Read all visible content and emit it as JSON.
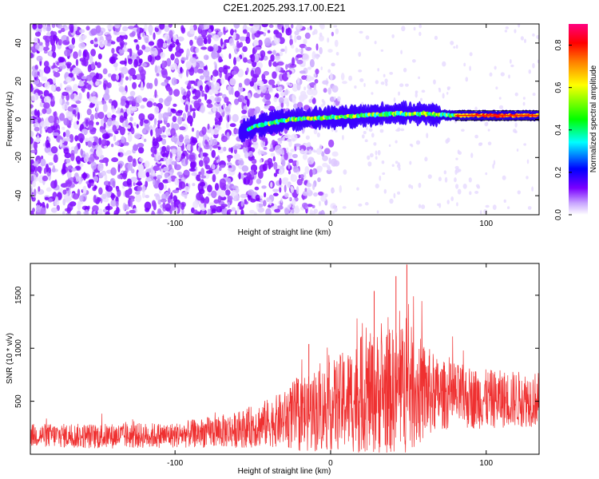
{
  "title": "C2E1.2025.293.17.00.E21",
  "chart_data": [
    {
      "type": "heatmap",
      "xlabel": "Height of straight line (km)",
      "ylabel": "Frequency (Hz)",
      "xlim": [
        -193,
        134
      ],
      "ylim": [
        -50,
        50
      ],
      "xticks": [
        -100,
        0,
        100
      ],
      "yticks": [
        -40,
        -20,
        0,
        20,
        40
      ],
      "xtick_labels": [
        "-100",
        "0",
        "100"
      ],
      "ytick_labels": [
        "-40",
        "-20",
        "0",
        "20",
        "40"
      ],
      "colorbar": {
        "label": "Normalized spectral amplitude",
        "range": [
          0.0,
          0.9
        ],
        "ticks": [
          0.0,
          0.2,
          0.4,
          0.6,
          0.8
        ],
        "tick_labels": [
          "0.0",
          "0.2",
          "0.4",
          "0.6",
          "0.8"
        ],
        "colors": [
          "#ffffff",
          "#7a00ff",
          "#0000ff",
          "#00ffff",
          "#00ff00",
          "#ffff00",
          "#ff8000",
          "#ff0000",
          "#ff0080"
        ]
      },
      "description_values": {
        "noise_region_km": [
          -193,
          -35
        ],
        "signal_band_start_km": -58,
        "signal_band_center_hz": [
          {
            "x": -58,
            "y": -7
          },
          {
            "x": -50,
            "y": -4
          },
          {
            "x": -40,
            "y": -2
          },
          {
            "x": -25,
            "y": 0
          },
          {
            "x": 0,
            "y": 1
          },
          {
            "x": 20,
            "y": 2
          },
          {
            "x": 40,
            "y": 3
          },
          {
            "x": 60,
            "y": 3
          },
          {
            "x": 80,
            "y": 2
          },
          {
            "x": 134,
            "y": 2
          }
        ],
        "peak_amplitude_km": [
          80,
          134
        ]
      }
    },
    {
      "type": "line",
      "xlabel": "Height of straight line (km)",
      "ylabel": "SNR (10 * v/v)",
      "xlim": [
        -193,
        134
      ],
      "ylim": [
        0,
        1800
      ],
      "xticks": [
        -100,
        0,
        100
      ],
      "yticks": [
        500,
        1000,
        1500
      ],
      "xtick_labels": [
        "-100",
        "0",
        "100"
      ],
      "ytick_labels": [
        "500",
        "1000",
        "1500"
      ],
      "color": "#ef3030",
      "envelope": [
        {
          "x": -193,
          "mean": 180,
          "amp": 110
        },
        {
          "x": -150,
          "mean": 170,
          "amp": 120
        },
        {
          "x": -100,
          "mean": 180,
          "amp": 120
        },
        {
          "x": -60,
          "mean": 230,
          "amp": 170
        },
        {
          "x": -30,
          "mean": 330,
          "amp": 260
        },
        {
          "x": -20,
          "mean": 380,
          "amp": 380
        },
        {
          "x": 0,
          "mean": 450,
          "amp": 420
        },
        {
          "x": 20,
          "mean": 560,
          "amp": 560
        },
        {
          "x": 40,
          "mean": 600,
          "amp": 600
        },
        {
          "x": 50,
          "mean": 620,
          "amp": 620
        },
        {
          "x": 70,
          "mean": 560,
          "amp": 330
        },
        {
          "x": 100,
          "mean": 520,
          "amp": 280
        },
        {
          "x": 134,
          "mean": 520,
          "amp": 260
        }
      ],
      "notable_peaks": [
        {
          "x": 49,
          "y": 1790
        },
        {
          "x": 42,
          "y": 1680
        },
        {
          "x": 28,
          "y": 1540
        },
        {
          "x": -14,
          "y": 1040
        }
      ]
    }
  ]
}
